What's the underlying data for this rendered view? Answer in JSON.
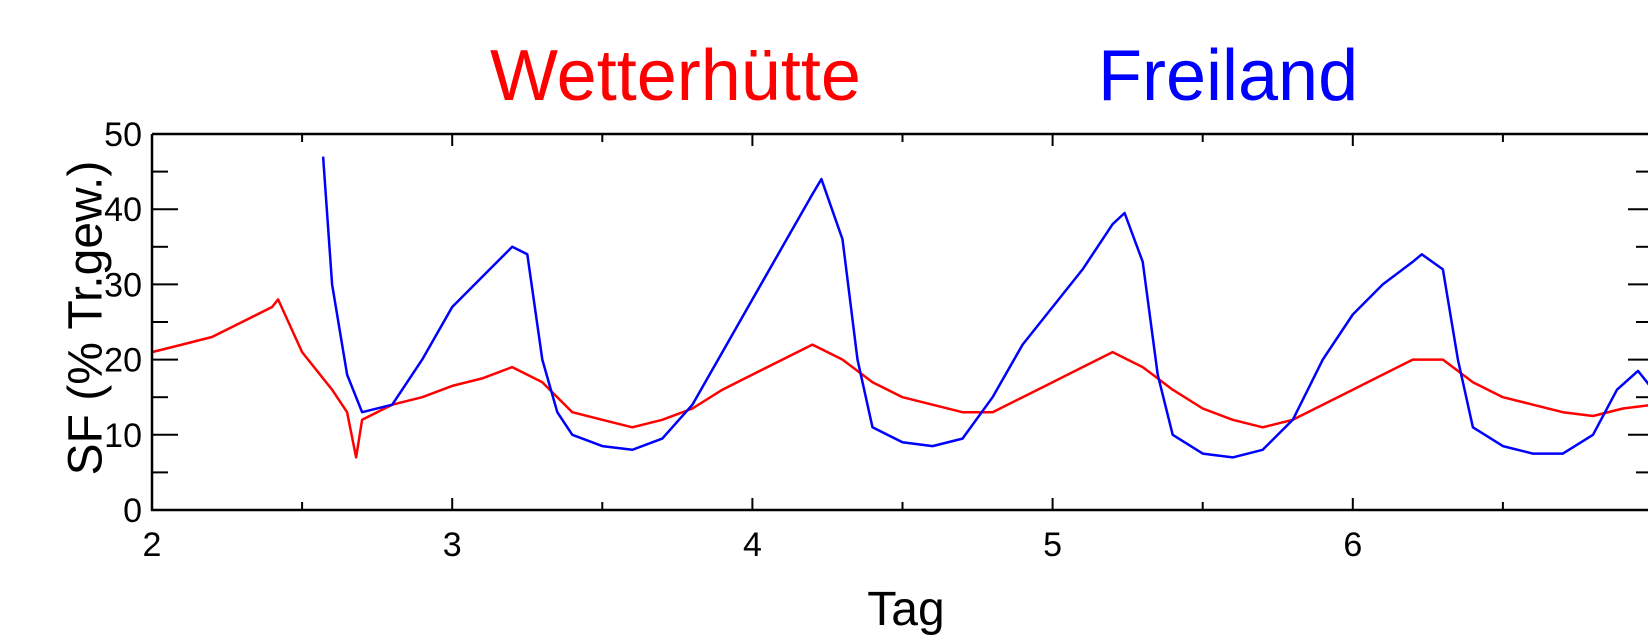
{
  "chart_data": {
    "type": "line",
    "title": "",
    "xlabel": "Tag",
    "ylabel": "SF (% Tr.gew.)",
    "xlim": [
      2,
      7
    ],
    "ylim": [
      0,
      50
    ],
    "grid": false,
    "legend_position": "top",
    "x_ticks": [
      "2",
      "3",
      "4",
      "5",
      "6"
    ],
    "y_ticks": [
      "0",
      "10",
      "20",
      "30",
      "40",
      "50"
    ],
    "series": [
      {
        "name": "Wetterhütte",
        "color": "#ff0000",
        "x": [
          2.0,
          2.1,
          2.2,
          2.3,
          2.4,
          2.42,
          2.5,
          2.6,
          2.65,
          2.68,
          2.7,
          2.75,
          2.8,
          2.9,
          3.0,
          3.1,
          3.2,
          3.3,
          3.4,
          3.5,
          3.6,
          3.7,
          3.8,
          3.9,
          4.0,
          4.1,
          4.2,
          4.3,
          4.4,
          4.5,
          4.6,
          4.7,
          4.8,
          4.9,
          5.0,
          5.1,
          5.2,
          5.3,
          5.4,
          5.5,
          5.6,
          5.7,
          5.8,
          5.9,
          6.0,
          6.1,
          6.2,
          6.3,
          6.4,
          6.5,
          6.6,
          6.7,
          6.8,
          6.9,
          7.0
        ],
        "y": [
          21,
          22,
          23,
          25,
          27,
          28,
          21,
          16,
          13,
          7,
          12,
          13,
          14,
          15,
          16.5,
          17.5,
          19,
          17,
          13,
          12,
          11,
          12,
          13.5,
          16,
          18,
          20,
          22,
          20,
          17,
          15,
          14,
          13,
          13,
          15,
          17,
          19,
          21,
          19,
          16,
          13.5,
          12,
          11,
          12,
          14,
          16,
          18,
          20,
          20,
          17,
          15,
          14,
          13,
          12.5,
          13.5,
          14
        ]
      },
      {
        "name": "Freiland",
        "color": "#0000ff",
        "x": [
          2.57,
          2.6,
          2.65,
          2.7,
          2.8,
          2.9,
          3.0,
          3.1,
          3.2,
          3.25,
          3.3,
          3.35,
          3.4,
          3.5,
          3.6,
          3.7,
          3.8,
          3.9,
          4.0,
          4.1,
          4.2,
          4.23,
          4.3,
          4.35,
          4.4,
          4.5,
          4.6,
          4.7,
          4.8,
          4.9,
          5.0,
          5.1,
          5.2,
          5.24,
          5.3,
          5.35,
          5.4,
          5.5,
          5.6,
          5.7,
          5.8,
          5.9,
          6.0,
          6.1,
          6.2,
          6.23,
          6.3,
          6.35,
          6.4,
          6.5,
          6.6,
          6.7,
          6.8,
          6.88,
          6.95,
          7.0
        ],
        "y": [
          47,
          30,
          18,
          13,
          14,
          20,
          27,
          31,
          35,
          34,
          20,
          13,
          10,
          8.5,
          8,
          9.5,
          14,
          21,
          28,
          35,
          42,
          44,
          36,
          20,
          11,
          9,
          8.5,
          9.5,
          15,
          22,
          27,
          32,
          38,
          39.5,
          33,
          18,
          10,
          7.5,
          7,
          8,
          12,
          20,
          26,
          30,
          33,
          34,
          32,
          20,
          11,
          8.5,
          7.5,
          7.5,
          10,
          16,
          18.5,
          16
        ]
      }
    ]
  }
}
